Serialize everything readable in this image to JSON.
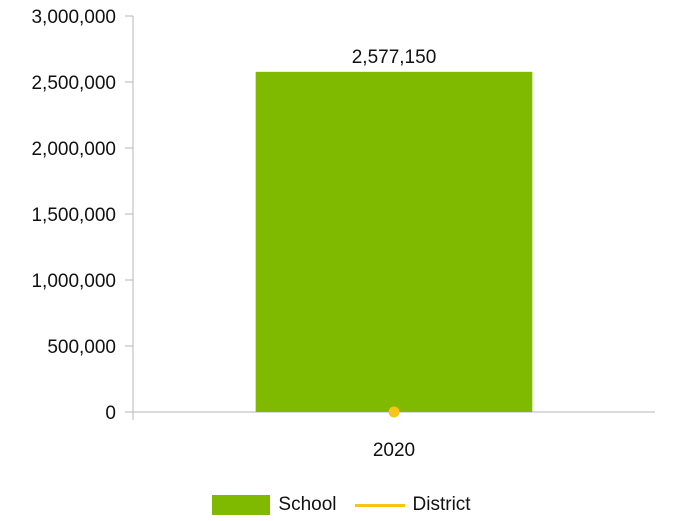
{
  "chart_data": {
    "type": "bar",
    "categories": [
      "2020"
    ],
    "series": [
      {
        "name": "School",
        "type": "bar",
        "values": [
          2577150
        ],
        "color": "#7fba00"
      },
      {
        "name": "District",
        "type": "line",
        "values": [
          0
        ],
        "color": "#f5c518"
      }
    ],
    "data_labels": [
      "2,577,150"
    ],
    "y_ticks": [
      "0",
      "500,000",
      "1,000,000",
      "1,500,000",
      "2,000,000",
      "2,500,000",
      "3,000,000"
    ],
    "ylim": [
      0,
      3000000
    ],
    "grid": false,
    "legend_position": "bottom",
    "title": "",
    "xlabel": "",
    "ylabel": ""
  },
  "legend": {
    "school_label": "School",
    "district_label": "District",
    "school_color": "#7fba00",
    "district_color": "#f5c518"
  }
}
